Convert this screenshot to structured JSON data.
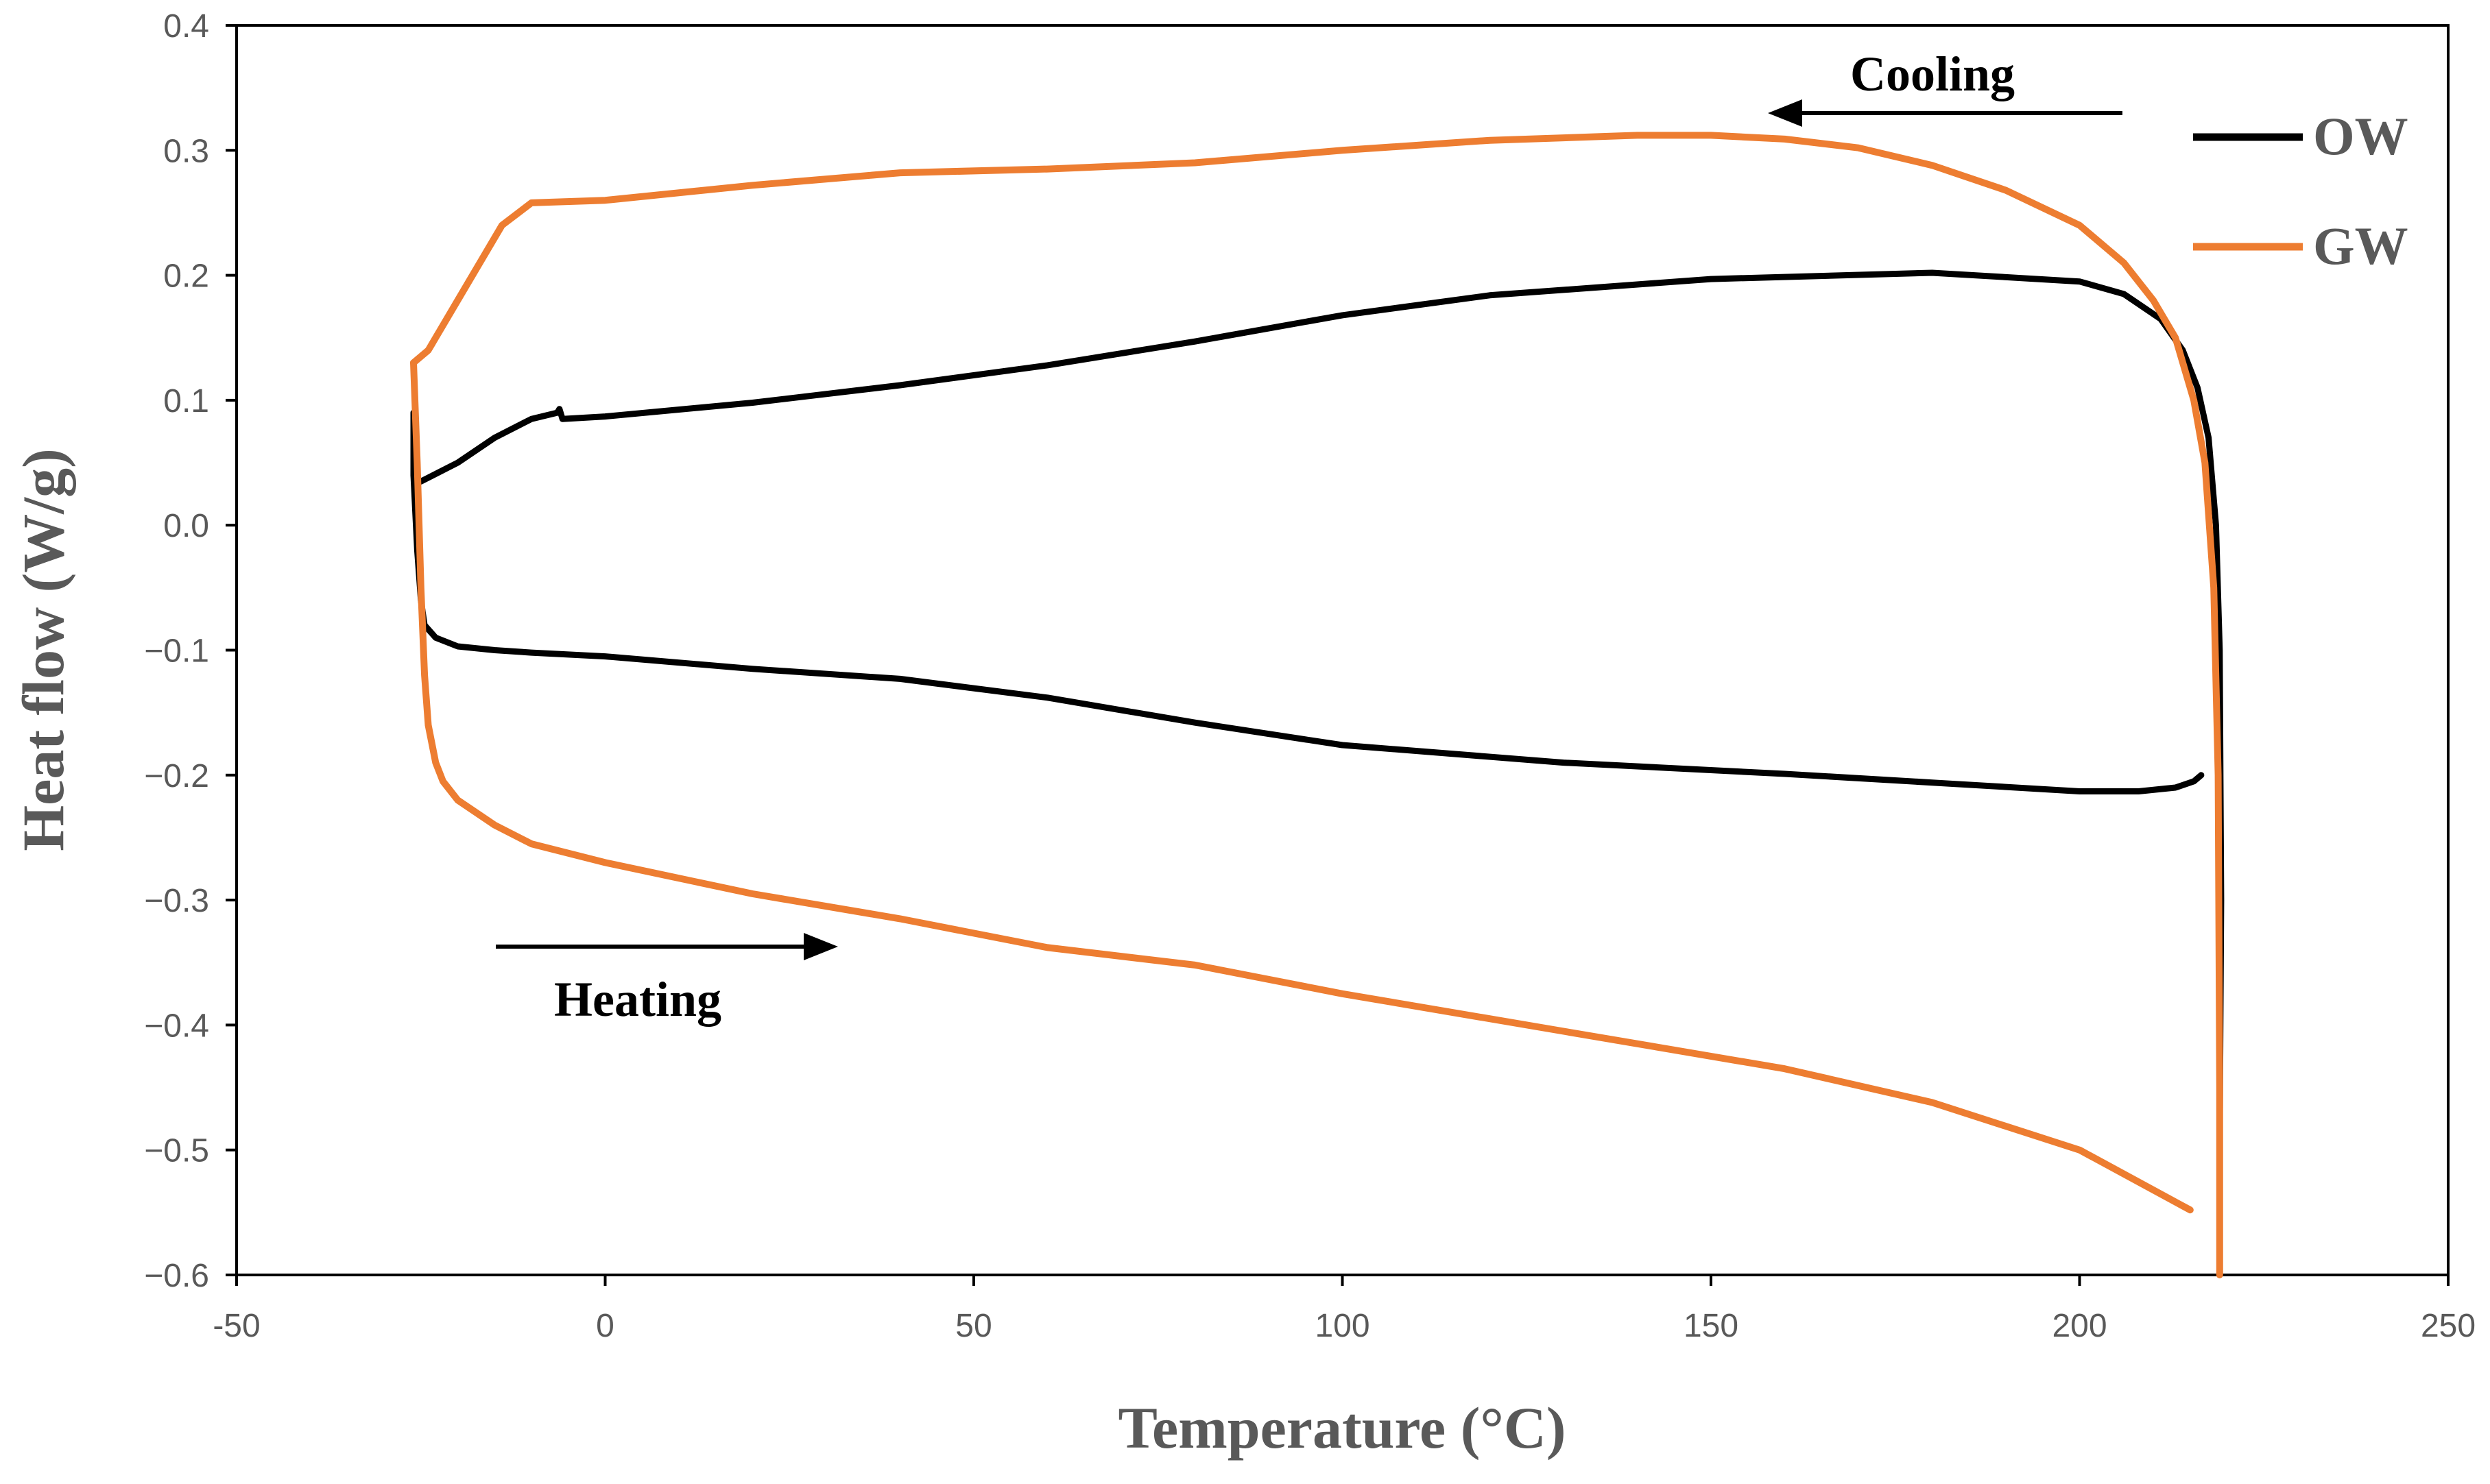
{
  "chart_data": {
    "type": "line",
    "title": "",
    "xlabel": "Temperature (°C)",
    "ylabel": "Heat flow (W/g)",
    "xlim": [
      -50,
      250
    ],
    "ylim": [
      -0.6,
      0.4
    ],
    "x_ticks": [
      -50,
      0,
      50,
      100,
      150,
      200,
      250
    ],
    "x_tick_labels": [
      "-50",
      "0",
      "50",
      "100",
      "150",
      "200",
      "250"
    ],
    "y_ticks": [
      0.4,
      0.3,
      0.2,
      0.1,
      0.0,
      -0.1,
      -0.2,
      -0.3,
      -0.4,
      -0.5,
      -0.6
    ],
    "y_tick_labels": [
      "0.4",
      "0.3",
      "0.2",
      "0.1",
      "0.0",
      "−0.1",
      "−0.2",
      "−0.3",
      "−0.4",
      "−0.5",
      "−0.6"
    ],
    "grid": false,
    "legend_position": "top-right",
    "annotations": [
      {
        "text": "Cooling",
        "arrow": "left",
        "x": 180,
        "y": 0.36
      },
      {
        "text": "Heating",
        "arrow": "right",
        "x": 8,
        "y": -0.37
      }
    ],
    "series": [
      {
        "name": "OW",
        "color": "#000000",
        "x": [
          -26,
          -26,
          -25.5,
          -25,
          -24.5,
          -23,
          -20,
          -15,
          -10,
          0,
          20,
          40,
          60,
          80,
          100,
          130,
          160,
          180,
          200,
          208,
          213,
          215.5,
          216.5
        ],
        "y": [
          0.09,
          0.04,
          -0.02,
          -0.06,
          -0.08,
          -0.09,
          -0.097,
          -0.1,
          -0.102,
          -0.105,
          -0.115,
          -0.123,
          -0.138,
          -0.158,
          -0.176,
          -0.19,
          -0.199,
          -0.206,
          -0.213,
          -0.213,
          -0.21,
          -0.205,
          -0.2
        ]
      },
      {
        "name": "OW",
        "color": "#000000",
        "x": [
          219,
          219.2,
          219,
          218.5,
          217.5,
          216,
          214,
          211,
          206,
          200,
          180,
          150,
          120,
          100,
          80,
          60,
          40,
          20,
          0,
          -5.8,
          -6.2,
          -6.5,
          -10,
          -15,
          -20,
          -25,
          -26
        ],
        "y": [
          -0.49,
          -0.3,
          -0.1,
          0.0,
          0.07,
          0.11,
          0.14,
          0.165,
          0.185,
          0.195,
          0.202,
          0.197,
          0.184,
          0.168,
          0.147,
          0.128,
          0.112,
          0.098,
          0.087,
          0.085,
          0.093,
          0.09,
          0.085,
          0.07,
          0.05,
          0.035,
          0.04
        ]
      },
      {
        "name": "GW",
        "color": "#ED7D31",
        "x": [
          -26,
          -25.5,
          -25,
          -24.5,
          -24,
          -23,
          -22,
          -20,
          -15,
          -10,
          0,
          20,
          40,
          60,
          80,
          100,
          130,
          160,
          180,
          200,
          215
        ],
        "y": [
          0.13,
          0.05,
          -0.05,
          -0.12,
          -0.16,
          -0.19,
          -0.205,
          -0.22,
          -0.24,
          -0.255,
          -0.27,
          -0.295,
          -0.315,
          -0.338,
          -0.352,
          -0.375,
          -0.405,
          -0.435,
          -0.462,
          -0.5,
          -0.548
        ]
      },
      {
        "name": "GW",
        "color": "#ED7D31",
        "x": [
          219,
          219,
          218.8,
          218.2,
          217,
          215.5,
          213,
          210,
          206,
          200,
          190,
          180,
          170,
          160,
          150,
          140,
          130,
          120,
          100,
          80,
          60,
          40,
          20,
          0,
          -10,
          -14,
          -20,
          -24,
          -26
        ],
        "y": [
          -0.6,
          -0.45,
          -0.2,
          -0.05,
          0.05,
          0.1,
          0.15,
          0.18,
          0.21,
          0.24,
          0.268,
          0.288,
          0.302,
          0.309,
          0.312,
          0.312,
          0.31,
          0.308,
          0.3,
          0.29,
          0.285,
          0.282,
          0.272,
          0.26,
          0.258,
          0.24,
          0.18,
          0.14,
          0.13
        ]
      }
    ]
  }
}
